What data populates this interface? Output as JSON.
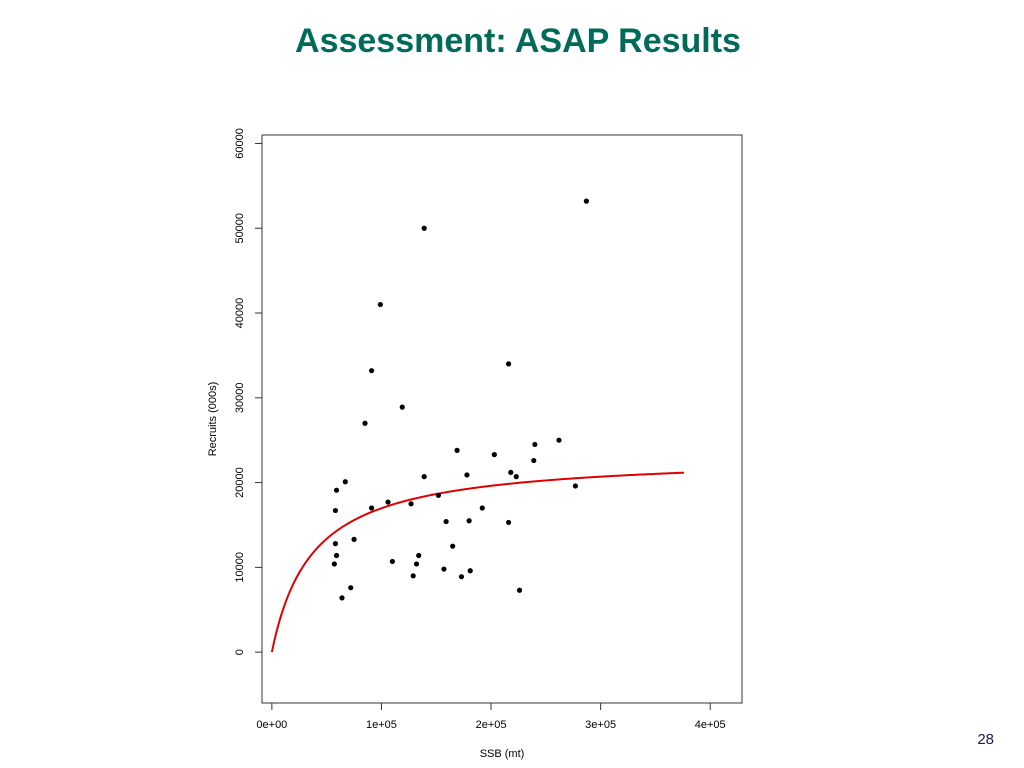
{
  "slide": {
    "title": "Assessment: ASAP Results",
    "page_number": "28"
  },
  "chart_data": {
    "type": "scatter",
    "title": "",
    "xlabel": "SSB (mt)",
    "ylabel": "Recruits (000s)",
    "xlim": [
      -9000,
      429000
    ],
    "ylim": [
      -6000,
      61000
    ],
    "x_ticks": [
      0,
      100000,
      200000,
      300000,
      400000
    ],
    "x_tick_labels": [
      "0e+00",
      "1e+05",
      "2e+05",
      "3e+05",
      "4e+05"
    ],
    "y_ticks": [
      0,
      10000,
      20000,
      30000,
      40000,
      50000,
      60000
    ],
    "y_tick_labels": [
      "0",
      "10000",
      "20000",
      "30000",
      "40000",
      "50000",
      "60000"
    ],
    "grid": false,
    "colors": {
      "points": "#000000",
      "curve": "#e00000",
      "title": "#006B5A"
    },
    "series": [
      {
        "kind": "points",
        "points": [
          [
            287000,
            53200
          ],
          [
            139000,
            50000
          ],
          [
            99000,
            41000
          ],
          [
            216000,
            34000
          ],
          [
            91000,
            33200
          ],
          [
            119000,
            28900
          ],
          [
            85000,
            27000
          ],
          [
            262000,
            25000
          ],
          [
            240000,
            24500
          ],
          [
            169000,
            23800
          ],
          [
            203000,
            23300
          ],
          [
            239000,
            22600
          ],
          [
            218000,
            21200
          ],
          [
            223000,
            20700
          ],
          [
            139000,
            20700
          ],
          [
            178000,
            20900
          ],
          [
            67000,
            20100
          ],
          [
            59000,
            19100
          ],
          [
            277000,
            19600
          ],
          [
            152000,
            18500
          ],
          [
            106000,
            17700
          ],
          [
            127000,
            17500
          ],
          [
            91000,
            17000
          ],
          [
            192000,
            17000
          ],
          [
            58000,
            16700
          ],
          [
            159000,
            15400
          ],
          [
            180000,
            15500
          ],
          [
            216000,
            15300
          ],
          [
            75000,
            13300
          ],
          [
            58000,
            12800
          ],
          [
            165000,
            12500
          ],
          [
            59000,
            11400
          ],
          [
            134000,
            11400
          ],
          [
            110000,
            10700
          ],
          [
            132000,
            10400
          ],
          [
            57000,
            10400
          ],
          [
            157000,
            9800
          ],
          [
            181000,
            9600
          ],
          [
            129000,
            9000
          ],
          [
            173000,
            8900
          ],
          [
            72000,
            7600
          ],
          [
            226000,
            7300
          ],
          [
            64000,
            6400
          ]
        ]
      },
      {
        "kind": "curve",
        "model": "beverton-holt",
        "a": 23250,
        "b": 37000,
        "x_range": [
          0,
          376000
        ]
      }
    ]
  }
}
